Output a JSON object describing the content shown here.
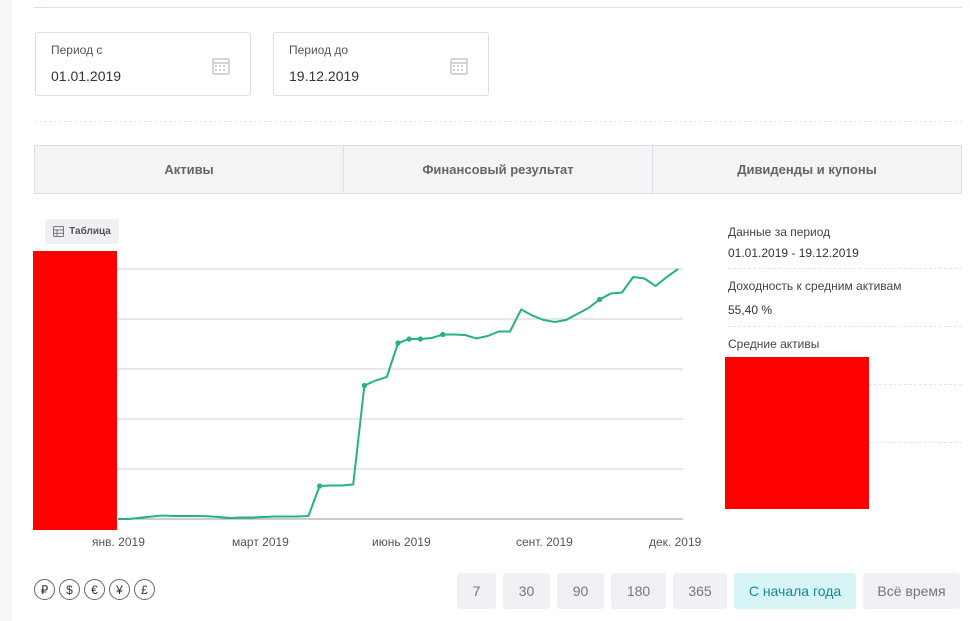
{
  "period": {
    "from_label": "Период с",
    "from_value": "01.01.2019",
    "to_label": "Период до",
    "to_value": "19.12.2019"
  },
  "tabs": [
    {
      "label": "Активы",
      "active": true
    },
    {
      "label": "Финансовый результат",
      "active": false
    },
    {
      "label": "Дивиденды и купоны",
      "active": false
    }
  ],
  "table_button": "Таблица",
  "chart_data": {
    "type": "line",
    "x_ticks": [
      "янв. 2019",
      "март 2019",
      "июнь 2019",
      "сент. 2019",
      "дек. 2019"
    ],
    "series_color": "#26b37c",
    "grid": true,
    "y_tick_labels": "redacted",
    "series": [
      {
        "values": [
          0,
          0,
          0.5,
          1,
          1.4,
          1.2,
          1.2,
          1.2,
          1.1,
          0.8,
          0.4,
          0.6,
          0.6,
          0.8,
          1,
          1,
          1,
          1.2,
          13.2,
          13.4,
          13.4,
          13.8,
          53.4,
          55.4,
          56.8,
          70.4,
          72,
          72,
          72.4,
          73.8,
          73.8,
          73.6,
          72.2,
          73.2,
          75,
          75,
          83.8,
          81.4,
          79.6,
          78.8,
          79.6,
          82,
          84.4,
          87.8,
          90.2,
          90.6,
          96.8,
          96.2,
          93.2,
          96.8,
          100
        ],
        "markers": [
          18,
          22,
          25,
          26,
          27,
          29,
          43
        ]
      }
    ]
  },
  "summary": {
    "period_label": "Данные за период",
    "period_value": "01.01.2019 - 19.12.2019",
    "yield_label": "Доходность к средним активам",
    "yield_value": "55,40 %",
    "avg_label": "Средние активы"
  },
  "currencies": [
    "₽",
    "$",
    "€",
    "¥",
    "£"
  ],
  "ranges": [
    {
      "label": "7",
      "active": false
    },
    {
      "label": "30",
      "active": false
    },
    {
      "label": "90",
      "active": false
    },
    {
      "label": "180",
      "active": false
    },
    {
      "label": "365",
      "active": false
    },
    {
      "label": "С начала года",
      "active": true
    },
    {
      "label": "Всё время",
      "active": false
    }
  ],
  "colors": {
    "accent": "#26b37c",
    "active_range_bg": "#d9f4f6",
    "active_range_text": "#138a93"
  }
}
